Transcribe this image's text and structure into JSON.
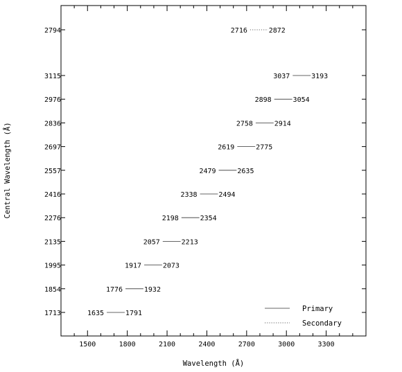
{
  "chart_data": {
    "type": "range-segments",
    "xlabel": "Wavelength (Å)",
    "ylabel": "Central Wavelength (Å)",
    "xlim": [
      1300,
      3600
    ],
    "x_ticks": [
      1500,
      1800,
      2100,
      2400,
      2700,
      3000,
      3300
    ],
    "legend": {
      "placement": "bottom-right",
      "entries": [
        {
          "name": "Primary",
          "style": "solid"
        },
        {
          "name": "Secondary",
          "style": "dotted"
        }
      ]
    },
    "rows": [
      {
        "central": "1713",
        "start": 1635,
        "end": 1791,
        "kind": "Primary"
      },
      {
        "central": "1854",
        "start": 1776,
        "end": 1932,
        "kind": "Primary"
      },
      {
        "central": "1995",
        "start": 1917,
        "end": 2073,
        "kind": "Primary"
      },
      {
        "central": "2135",
        "start": 2057,
        "end": 2213,
        "kind": "Primary"
      },
      {
        "central": "2276",
        "start": 2198,
        "end": 2354,
        "kind": "Primary"
      },
      {
        "central": "2416",
        "start": 2338,
        "end": 2494,
        "kind": "Primary"
      },
      {
        "central": "2557",
        "start": 2479,
        "end": 2635,
        "kind": "Primary"
      },
      {
        "central": "2697",
        "start": 2619,
        "end": 2775,
        "kind": "Primary"
      },
      {
        "central": "2836",
        "start": 2758,
        "end": 2914,
        "kind": "Primary"
      },
      {
        "central": "2976",
        "start": 2898,
        "end": 3054,
        "kind": "Primary"
      },
      {
        "central": "3115",
        "start": 3037,
        "end": 3193,
        "kind": "Primary"
      },
      {
        "central": "2794",
        "start": 2716,
        "end": 2872,
        "kind": "Secondary"
      }
    ]
  }
}
